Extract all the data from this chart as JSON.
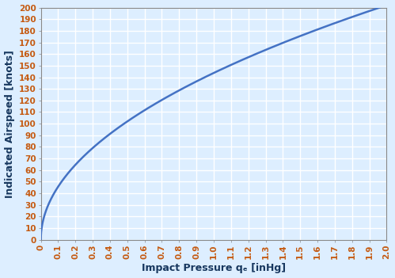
{
  "xlabel": "Impact Pressure qₑ [inHg]",
  "ylabel": "Indicated Airspeed [knots]",
  "xlim": [
    0,
    2.0
  ],
  "ylim": [
    0,
    200
  ],
  "xticks": [
    0,
    0.1,
    0.2,
    0.3,
    0.4,
    0.5,
    0.6,
    0.7,
    0.8,
    0.9,
    1.0,
    1.1,
    1.2,
    1.3,
    1.4,
    1.5,
    1.6,
    1.7,
    1.8,
    1.9,
    2.0
  ],
  "yticks": [
    0,
    10,
    20,
    30,
    40,
    50,
    60,
    70,
    80,
    90,
    100,
    110,
    120,
    130,
    140,
    150,
    160,
    170,
    180,
    190,
    200
  ],
  "line_color": "#4472C4",
  "line_width": 1.8,
  "bg_color": "#DDEEFF",
  "plot_bg_color": "#DDEEFF",
  "grid_color": "#ffffff",
  "grid_linewidth": 1.0,
  "axis_label_color": "#17375E",
  "tick_label_color": "#C55A11",
  "xlabel_fontsize": 9,
  "ylabel_fontsize": 9,
  "tick_fontsize": 7.5
}
